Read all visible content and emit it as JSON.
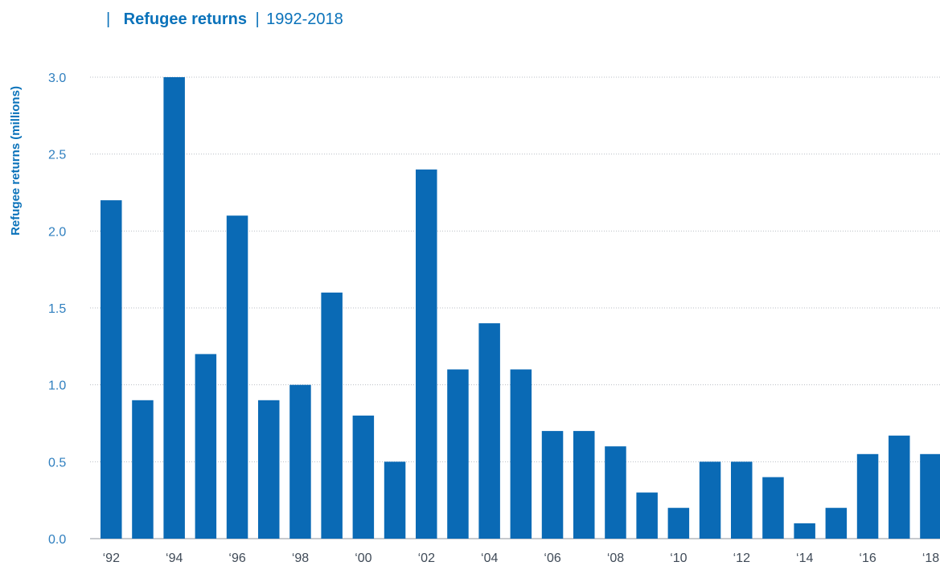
{
  "header": {
    "separator": "|",
    "title": "Refugee returns",
    "years": "1992-2018"
  },
  "chart_data": {
    "type": "bar",
    "title": "Refugee returns | 1992-2018",
    "xlabel": "",
    "ylabel": "Refugee returns (millions)",
    "ylim": [
      0,
      3.0
    ],
    "yticks": [
      "0.0",
      "0.5",
      "1.0",
      "1.5",
      "2.0",
      "2.5",
      "3.0"
    ],
    "grid": true,
    "bar_color": "#0a6ab5",
    "categories": [
      "1992",
      "1993",
      "1994",
      "1995",
      "1996",
      "1997",
      "1998",
      "1999",
      "2000",
      "2001",
      "2002",
      "2003",
      "2004",
      "2005",
      "2006",
      "2007",
      "2008",
      "2009",
      "2010",
      "2011",
      "2012",
      "2013",
      "2014",
      "2015",
      "2016",
      "2017",
      "2018"
    ],
    "xtick_labels": [
      "‘92",
      "",
      "‘94",
      "",
      "‘96",
      "",
      "‘98",
      "",
      "‘00",
      "",
      "‘02",
      "",
      "‘04",
      "",
      "‘06",
      "",
      "‘08",
      "",
      "‘10",
      "",
      "‘12",
      "",
      "‘14",
      "",
      "‘16",
      "",
      "‘18"
    ],
    "values": [
      2.2,
      0.9,
      3.0,
      1.2,
      2.1,
      0.9,
      1.0,
      1.6,
      0.8,
      0.5,
      2.4,
      1.1,
      1.4,
      1.1,
      0.7,
      0.7,
      0.6,
      0.3,
      0.2,
      0.5,
      0.5,
      0.4,
      0.1,
      0.2,
      0.55,
      0.67,
      0.55
    ]
  }
}
